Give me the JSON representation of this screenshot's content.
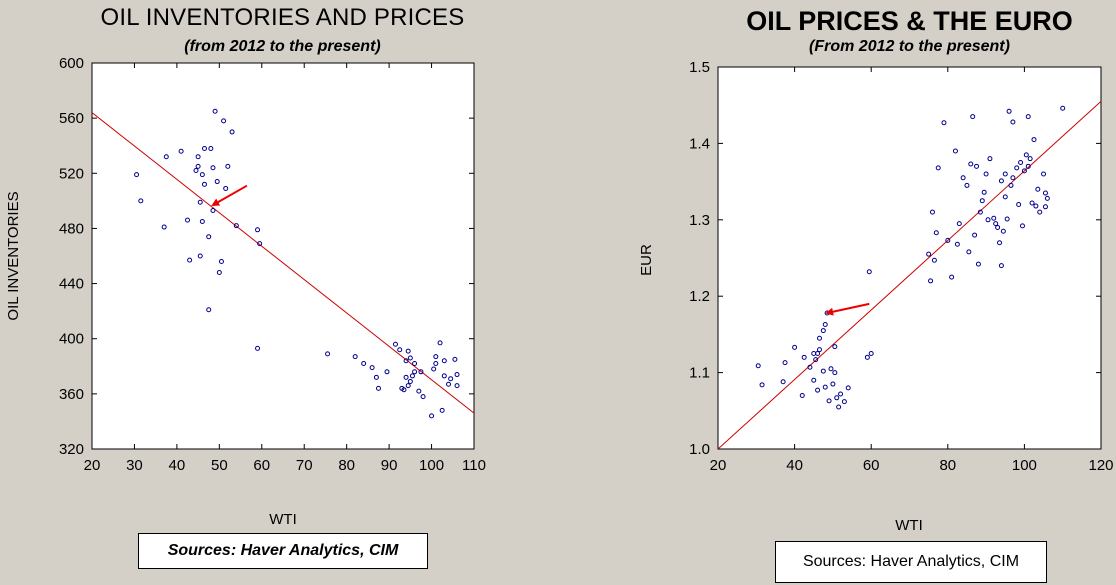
{
  "charts": {
    "left": {
      "title": "OIL INVENTORIES AND PRICES",
      "subtitle": "(from 2012 to the present)",
      "source": "Sources: Haver Analytics, CIM"
    },
    "right": {
      "title": "OIL PRICES & THE EURO",
      "subtitle": "(From 2012 to the present)",
      "source": "Sources:  Haver Analytics, CIM"
    }
  },
  "chart_data": [
    {
      "type": "scatter",
      "title": "OIL INVENTORIES AND PRICES",
      "subtitle": "(from 2012 to the present)",
      "xlabel": "WTI",
      "ylabel": "OIL INVENTORIES",
      "xlim": [
        20,
        110
      ],
      "ylim": [
        320,
        600
      ],
      "xticks": [
        20,
        30,
        40,
        50,
        60,
        70,
        80,
        90,
        100,
        110
      ],
      "yticks": [
        320,
        360,
        400,
        440,
        480,
        520,
        560,
        600
      ],
      "grid": false,
      "point_color": "#00008b",
      "line_color": "#cc0000",
      "arrow_color": "#ee0000",
      "regression_line": {
        "x": [
          20,
          110
        ],
        "y": [
          564,
          346
        ]
      },
      "arrow": {
        "from": [
          56.5,
          511
        ],
        "to": [
          48.5,
          497
        ]
      },
      "points": [
        [
          30.5,
          519
        ],
        [
          31.5,
          500
        ],
        [
          37,
          481
        ],
        [
          37.5,
          532
        ],
        [
          41,
          536
        ],
        [
          42.5,
          486
        ],
        [
          43,
          457
        ],
        [
          44.5,
          522
        ],
        [
          45,
          532
        ],
        [
          45,
          525
        ],
        [
          45.5,
          460
        ],
        [
          45.5,
          499
        ],
        [
          46,
          485
        ],
        [
          46,
          519
        ],
        [
          46.5,
          512
        ],
        [
          46.5,
          538
        ],
        [
          47.5,
          474
        ],
        [
          47.5,
          421
        ],
        [
          48,
          538
        ],
        [
          48.5,
          493
        ],
        [
          48.5,
          524
        ],
        [
          49,
          565
        ],
        [
          49.5,
          514
        ],
        [
          50,
          448
        ],
        [
          50.5,
          456
        ],
        [
          51,
          558
        ],
        [
          51.5,
          509
        ],
        [
          52,
          525
        ],
        [
          53,
          550
        ],
        [
          54,
          482
        ],
        [
          59,
          479
        ],
        [
          59.5,
          469
        ],
        [
          59,
          393
        ],
        [
          75.5,
          389
        ],
        [
          82,
          387
        ],
        [
          84,
          382
        ],
        [
          86,
          379
        ],
        [
          87,
          372
        ],
        [
          87.5,
          364
        ],
        [
          89.5,
          376
        ],
        [
          91.5,
          396
        ],
        [
          92.5,
          392
        ],
        [
          93,
          364
        ],
        [
          93.5,
          363
        ],
        [
          94,
          372
        ],
        [
          94,
          384
        ],
        [
          94.5,
          391
        ],
        [
          94.5,
          366
        ],
        [
          95,
          369
        ],
        [
          95,
          386
        ],
        [
          95.5,
          373
        ],
        [
          96,
          376
        ],
        [
          96,
          382
        ],
        [
          97,
          362
        ],
        [
          97.5,
          376
        ],
        [
          98,
          358
        ],
        [
          100,
          344
        ],
        [
          100.5,
          378
        ],
        [
          101,
          382
        ],
        [
          101,
          387
        ],
        [
          102,
          397
        ],
        [
          102.5,
          348
        ],
        [
          103,
          373
        ],
        [
          103,
          384
        ],
        [
          104,
          367
        ],
        [
          104.5,
          371
        ],
        [
          105.5,
          385
        ],
        [
          106,
          374
        ],
        [
          106,
          366
        ]
      ]
    },
    {
      "type": "scatter",
      "title": "OIL PRICES & THE EURO",
      "subtitle": "(From 2012 to the present)",
      "xlabel": "WTI",
      "ylabel": "EUR",
      "xlim": [
        20,
        120
      ],
      "ylim": [
        1.0,
        1.5
      ],
      "xticks": [
        20,
        40,
        60,
        80,
        100,
        120
      ],
      "yticks": [
        1.0,
        1.1,
        1.2,
        1.3,
        1.4,
        1.5
      ],
      "grid": false,
      "point_color": "#00008b",
      "line_color": "#cc0000",
      "arrow_color": "#ee0000",
      "regression_line": {
        "x": [
          20,
          120
        ],
        "y": [
          1.0,
          1.455
        ]
      },
      "arrow": {
        "from": [
          59.5,
          1.19
        ],
        "to": [
          48.5,
          1.178
        ]
      },
      "points": [
        [
          30.5,
          1.109
        ],
        [
          31.5,
          1.084
        ],
        [
          37,
          1.088
        ],
        [
          37.5,
          1.113
        ],
        [
          40,
          1.133
        ],
        [
          42,
          1.07
        ],
        [
          42.5,
          1.12
        ],
        [
          44,
          1.107
        ],
        [
          45,
          1.125
        ],
        [
          45,
          1.09
        ],
        [
          45.5,
          1.117
        ],
        [
          46,
          1.077
        ],
        [
          46,
          1.125
        ],
        [
          46.5,
          1.13
        ],
        [
          46.5,
          1.145
        ],
        [
          47.5,
          1.155
        ],
        [
          47.5,
          1.102
        ],
        [
          48,
          1.163
        ],
        [
          48,
          1.081
        ],
        [
          48.5,
          1.178
        ],
        [
          49,
          1.063
        ],
        [
          49.5,
          1.105
        ],
        [
          50,
          1.085
        ],
        [
          50.5,
          1.134
        ],
        [
          50.5,
          1.1
        ],
        [
          51,
          1.067
        ],
        [
          51.5,
          1.055
        ],
        [
          52,
          1.072
        ],
        [
          53,
          1.062
        ],
        [
          54,
          1.08
        ],
        [
          59,
          1.12
        ],
        [
          59.5,
          1.232
        ],
        [
          60,
          1.125
        ],
        [
          75,
          1.255
        ],
        [
          75.5,
          1.22
        ],
        [
          76,
          1.31
        ],
        [
          76.5,
          1.247
        ],
        [
          77,
          1.283
        ],
        [
          77.5,
          1.368
        ],
        [
          79,
          1.427
        ],
        [
          80,
          1.273
        ],
        [
          81,
          1.225
        ],
        [
          82,
          1.39
        ],
        [
          82.5,
          1.268
        ],
        [
          83,
          1.295
        ],
        [
          84,
          1.355
        ],
        [
          85,
          1.345
        ],
        [
          85.5,
          1.258
        ],
        [
          86,
          1.373
        ],
        [
          86.5,
          1.435
        ],
        [
          87,
          1.28
        ],
        [
          87.5,
          1.37
        ],
        [
          88,
          1.242
        ],
        [
          88.5,
          1.31
        ],
        [
          89,
          1.325
        ],
        [
          89.5,
          1.336
        ],
        [
          90,
          1.36
        ],
        [
          90.5,
          1.3
        ],
        [
          91,
          1.38
        ],
        [
          92,
          1.302
        ],
        [
          92.5,
          1.295
        ],
        [
          93,
          1.29
        ],
        [
          93.5,
          1.27
        ],
        [
          94,
          1.351
        ],
        [
          94,
          1.24
        ],
        [
          94.5,
          1.285
        ],
        [
          95,
          1.36
        ],
        [
          95,
          1.33
        ],
        [
          95.5,
          1.301
        ],
        [
          96,
          1.442
        ],
        [
          96.5,
          1.345
        ],
        [
          97,
          1.428
        ],
        [
          97,
          1.355
        ],
        [
          98,
          1.368
        ],
        [
          98.5,
          1.32
        ],
        [
          99,
          1.375
        ],
        [
          99.5,
          1.292
        ],
        [
          100,
          1.364
        ],
        [
          100.5,
          1.385
        ],
        [
          101,
          1.435
        ],
        [
          101,
          1.37
        ],
        [
          101.5,
          1.38
        ],
        [
          102,
          1.322
        ],
        [
          102.5,
          1.405
        ],
        [
          103,
          1.318
        ],
        [
          103.5,
          1.34
        ],
        [
          104,
          1.31
        ],
        [
          105,
          1.36
        ],
        [
          105.5,
          1.335
        ],
        [
          105.5,
          1.317
        ],
        [
          106,
          1.328
        ],
        [
          110,
          1.446
        ]
      ]
    }
  ]
}
